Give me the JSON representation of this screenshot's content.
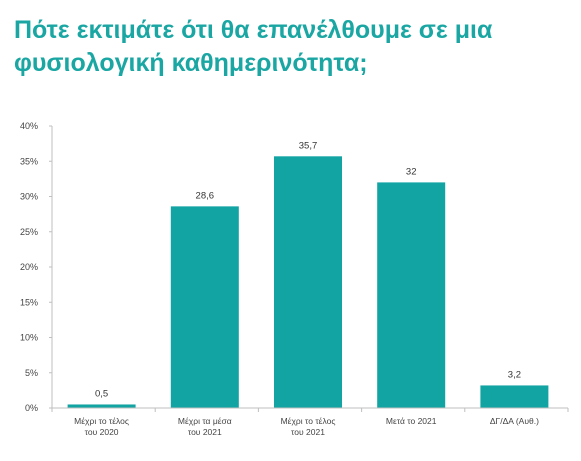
{
  "title_lines": [
    "Πότε εκτιμάτε ότι θα επανέλθουμε σε μια",
    "φυσιολογική καθημερινότητα;"
  ],
  "colors": {
    "title": "#1aa6a3",
    "bar": "#12a3a3",
    "axis": "#bfbfbf"
  },
  "chart_data": {
    "type": "bar",
    "title": "Πότε εκτιμάτε ότι θα επανέλθουμε σε μια φυσιολογική καθημερινότητα;",
    "categories": [
      [
        "Μέχρι το τέλος",
        "του 2020"
      ],
      [
        "Μέχρι τα μέσα",
        "του 2021"
      ],
      [
        "Μέχρι το τέλος",
        "του 2021"
      ],
      [
        "Μετά το 2021"
      ],
      [
        "ΔΓ/ΔΑ (Αυθ.)"
      ]
    ],
    "values": [
      0.5,
      28.6,
      35.7,
      32,
      3.2
    ],
    "value_labels": [
      "0,5",
      "28,6",
      "35,7",
      "32",
      "3,2"
    ],
    "yticks": [
      0,
      5,
      10,
      15,
      20,
      25,
      30,
      35,
      40
    ],
    "ytick_labels": [
      "0%",
      "5%",
      "10%",
      "15%",
      "20%",
      "25%",
      "30%",
      "35%",
      "40%"
    ],
    "ylim": [
      0,
      40
    ],
    "xlabel": "",
    "ylabel": "",
    "grid": false,
    "legend": "none"
  }
}
